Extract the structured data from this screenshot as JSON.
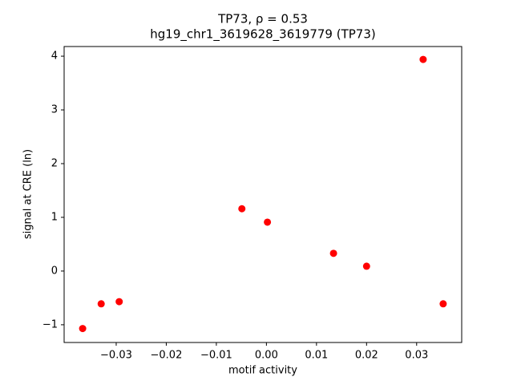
{
  "chart_data": {
    "type": "scatter",
    "title": "TP73, ρ = 0.53",
    "subtitle": "hg19_chr1_3619628_3619779 (TP73)",
    "x_label": "motif activity",
    "y_label": "signal at CRE (ln)",
    "color": "#ff0000",
    "x": [
      -0.0367,
      -0.033,
      -0.0294,
      -0.0049,
      0.0002,
      0.0134,
      0.02,
      0.0313,
      0.0353
    ],
    "values": [
      -1.07,
      -0.61,
      -0.57,
      1.16,
      0.91,
      0.33,
      0.09,
      3.94,
      -0.61
    ],
    "xlim": [
      -0.0404,
      0.039
    ],
    "ylim": [
      -1.33,
      4.18
    ],
    "xticks": [
      {
        "value": -0.03,
        "label": "−0.03"
      },
      {
        "value": -0.02,
        "label": "−0.02"
      },
      {
        "value": -0.01,
        "label": "−0.01"
      },
      {
        "value": 0,
        "label": "0.00"
      },
      {
        "value": 0.01,
        "label": "0.01"
      },
      {
        "value": 0.02,
        "label": "0.02"
      },
      {
        "value": 0.03,
        "label": "0.03"
      }
    ],
    "yticks": [
      {
        "value": -1,
        "label": "−1"
      },
      0,
      1,
      2,
      3,
      4
    ],
    "grid": false
  }
}
